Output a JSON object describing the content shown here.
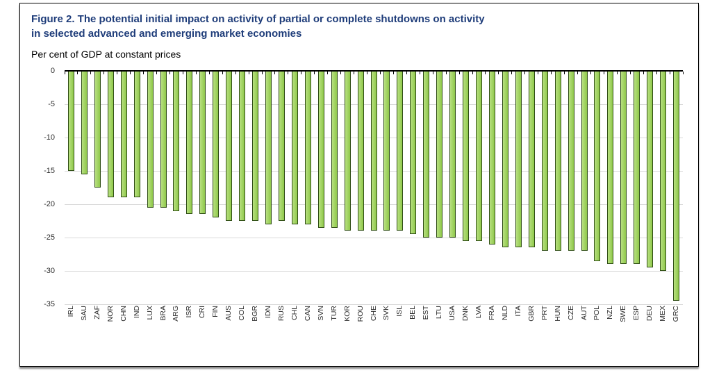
{
  "figure": {
    "title_line1": "Figure 2. The potential initial impact on activity of partial or complete shutdowns on activity",
    "title_line2": "in selected advanced and emerging market economies",
    "subtitle": "Per cent of GDP at constant prices"
  },
  "colors": {
    "title_blue": "#1f3d7a",
    "bar_fill_green": "#9ed357",
    "bar_border_green": "#2f4d15",
    "gridline_gray": "#d9d9d9",
    "axis_black": "#000000"
  },
  "chart_data": {
    "type": "bar",
    "title": "Figure 2. The potential initial impact on activity of partial or complete shutdowns on activity in selected advanced and emerging market economies",
    "subtitle": "Per cent of GDP at constant prices",
    "xlabel": "",
    "ylabel": "Per cent of GDP at constant prices",
    "ylim": [
      -35,
      0
    ],
    "yticks": [
      0,
      -5,
      -10,
      -15,
      -20,
      -25,
      -30,
      -35
    ],
    "grid": true,
    "legend": "none",
    "categories": [
      "IRL",
      "SAU",
      "ZAF",
      "NOR",
      "CHN",
      "IND",
      "LUX",
      "BRA",
      "ARG",
      "ISR",
      "CRI",
      "FIN",
      "AUS",
      "COL",
      "BGR",
      "IDN",
      "RUS",
      "CHL",
      "CAN",
      "SVN",
      "TUR",
      "KOR",
      "ROU",
      "CHE",
      "SVK",
      "ISL",
      "BEL",
      "EST",
      "LTU",
      "USA",
      "DNK",
      "LVA",
      "FRA",
      "NLD",
      "ITA",
      "GBR",
      "PRT",
      "HUN",
      "CZE",
      "AUT",
      "POL",
      "NZL",
      "SWE",
      "ESP",
      "DEU",
      "MEX",
      "GRC"
    ],
    "values": [
      -15.0,
      -15.5,
      -17.5,
      -19.0,
      -19.0,
      -19.0,
      -20.5,
      -20.5,
      -21.0,
      -21.5,
      -21.5,
      -22.0,
      -22.5,
      -22.5,
      -22.5,
      -23.0,
      -22.5,
      -23.0,
      -23.0,
      -23.5,
      -23.5,
      -24.0,
      -24.0,
      -24.0,
      -24.0,
      -24.0,
      -24.5,
      -25.0,
      -25.0,
      -25.0,
      -25.5,
      -25.5,
      -26.0,
      -26.5,
      -26.5,
      -26.5,
      -27.0,
      -27.0,
      -27.0,
      -27.0,
      -28.5,
      -29.0,
      -29.0,
      -29.0,
      -29.5,
      -30.0,
      -34.5
    ]
  }
}
